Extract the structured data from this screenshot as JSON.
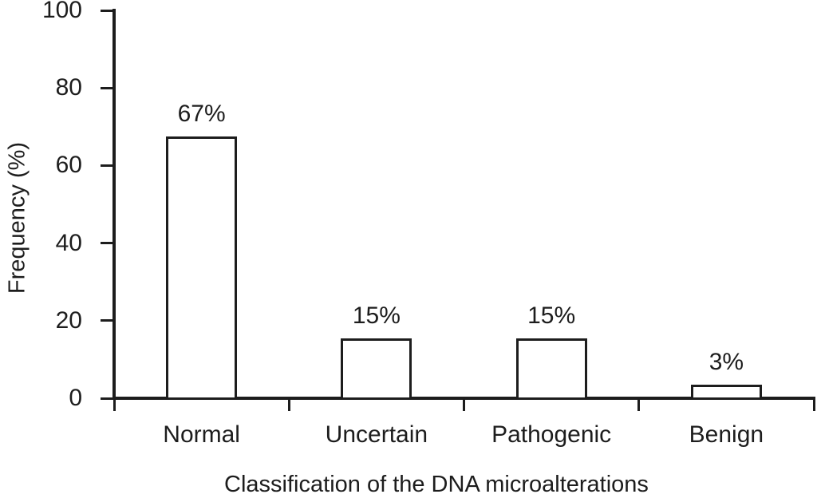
{
  "chart_data": {
    "type": "bar",
    "title": "",
    "categories": [
      "Normal",
      "Uncertain",
      "Pathogenic",
      "Benign"
    ],
    "values": [
      67,
      15,
      15,
      3
    ],
    "value_labels": [
      "67%",
      "15%",
      "15%",
      "3%"
    ],
    "xlabel": "Classification of the DNA microalterations",
    "ylabel": "Frequency (%)",
    "ylim": [
      0,
      100
    ],
    "yticks": [
      0,
      20,
      40,
      60,
      80,
      100
    ],
    "grid": false,
    "legend": "none",
    "bar_fill": "#ffffff",
    "stroke_color": "#1d1d1d",
    "background": "#ffffff"
  }
}
